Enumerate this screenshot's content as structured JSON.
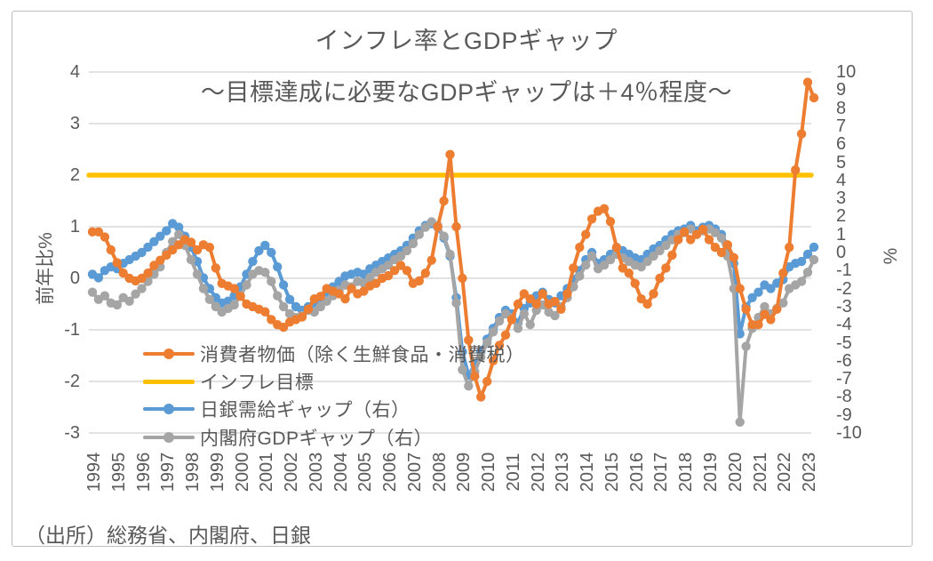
{
  "chart": {
    "title": "インフレ率とGDPギャップ",
    "subtitle": "～目標達成に必要なGDPギャップは＋4％程度～",
    "source_note": "（出所）総務省、内閣府、日銀",
    "border_color": "#bfbfbf",
    "grid_color": "#d9d9d9",
    "text_color": "#595959"
  },
  "chart_data": {
    "type": "line",
    "title": "インフレ率とGDPギャップ",
    "subtitle": "～目標達成に必要なGDPギャップは＋4％程度～",
    "x_unit": "quarter",
    "x_start": "1994Q1",
    "x_end": "2023Q2",
    "x_tick_labels": [
      "1994",
      "1995",
      "1996",
      "1997",
      "1998",
      "1999",
      "2000",
      "2001",
      "2002",
      "2003",
      "2004",
      "2005",
      "2006",
      "2007",
      "2008",
      "2009",
      "2010",
      "2011",
      "2012",
      "2013",
      "2014",
      "2015",
      "2016",
      "2017",
      "2018",
      "2019",
      "2020",
      "2021",
      "2022",
      "2023"
    ],
    "grid": true,
    "legend_position": "inside-bottom-left",
    "left_axis": {
      "label": "前年比%",
      "min": -3,
      "max": 4,
      "tick_step": 1,
      "ticks": [
        4,
        3,
        2,
        1,
        0,
        -1,
        -2,
        -3
      ]
    },
    "right_axis": {
      "label": "%",
      "min": -10,
      "max": 10,
      "tick_step": 1,
      "ticks": [
        10,
        9,
        8,
        7,
        6,
        5,
        4,
        3,
        2,
        1,
        0,
        -1,
        -2,
        -3,
        -4,
        -5,
        -6,
        -7,
        -8,
        -9,
        -10
      ]
    },
    "series": [
      {
        "name": "消費者物価（除く生鮮食品・消費税）",
        "axis": "left",
        "color": "#ED7D31",
        "marker": true,
        "values": [
          0.9,
          0.9,
          0.8,
          0.55,
          0.3,
          0.1,
          0.0,
          -0.05,
          0.0,
          0.1,
          0.25,
          0.35,
          0.45,
          0.55,
          0.65,
          0.75,
          0.7,
          0.55,
          0.65,
          0.6,
          0.2,
          -0.1,
          -0.15,
          -0.2,
          -0.35,
          -0.5,
          -0.55,
          -0.6,
          -0.65,
          -0.8,
          -0.9,
          -0.95,
          -0.85,
          -0.8,
          -0.75,
          -0.6,
          -0.4,
          -0.35,
          -0.2,
          -0.25,
          -0.3,
          -0.4,
          -0.2,
          -0.3,
          -0.25,
          -0.15,
          -0.1,
          0.0,
          0.05,
          0.15,
          0.25,
          0.15,
          -0.1,
          -0.05,
          0.1,
          0.35,
          1.0,
          1.5,
          2.4,
          1.0,
          0.0,
          -1.2,
          -1.9,
          -2.3,
          -2.0,
          -1.6,
          -1.3,
          -1.1,
          -0.8,
          -0.5,
          -0.3,
          -0.4,
          -0.5,
          -0.3,
          -0.5,
          -0.45,
          -0.6,
          -0.3,
          0.2,
          0.6,
          0.85,
          1.15,
          1.3,
          1.35,
          1.1,
          0.6,
          0.2,
          0.1,
          -0.1,
          -0.4,
          -0.5,
          -0.3,
          0.0,
          0.2,
          0.45,
          0.75,
          0.9,
          0.75,
          0.85,
          0.95,
          0.75,
          0.6,
          0.5,
          0.65,
          0.4,
          -0.2,
          -0.6,
          -0.9,
          -0.9,
          -0.7,
          -0.8,
          -0.6,
          0.1,
          0.6,
          2.1,
          2.8,
          3.8,
          3.5
        ]
      },
      {
        "name": "インフレ目標",
        "axis": "left",
        "color": "#FFC000",
        "marker": false,
        "constant_value": 2
      },
      {
        "name": "日銀需給ギャップ（右）",
        "axis": "right",
        "color": "#5B9BD5",
        "marker": true,
        "values": [
          -1.2,
          -1.4,
          -1.0,
          -0.8,
          -0.9,
          -0.6,
          -0.4,
          -0.2,
          0.0,
          0.3,
          0.6,
          0.9,
          1.2,
          1.6,
          1.4,
          0.9,
          0.3,
          -0.5,
          -1.4,
          -2.0,
          -2.5,
          -2.8,
          -2.7,
          -2.4,
          -1.9,
          -1.2,
          -0.5,
          0.1,
          0.4,
          0.0,
          -0.8,
          -1.8,
          -2.6,
          -3.0,
          -3.2,
          -3.0,
          -2.8,
          -2.5,
          -2.2,
          -1.9,
          -1.6,
          -1.3,
          -1.2,
          -1.1,
          -1.2,
          -0.9,
          -0.7,
          -0.5,
          -0.3,
          -0.1,
          0.1,
          0.4,
          0.8,
          1.2,
          1.5,
          1.6,
          1.4,
          0.8,
          -0.2,
          -2.5,
          -5.5,
          -6.8,
          -6.2,
          -5.5,
          -4.8,
          -4.2,
          -3.6,
          -3.2,
          -3.4,
          -3.9,
          -3.1,
          -2.8,
          -2.4,
          -2.2,
          -2.6,
          -2.8,
          -2.4,
          -2.0,
          -1.5,
          -1.0,
          -0.4,
          0.0,
          -0.6,
          -0.4,
          -0.1,
          0.2,
          0.1,
          -0.1,
          -0.3,
          -0.4,
          -0.1,
          0.2,
          0.4,
          0.7,
          1.0,
          1.2,
          1.3,
          1.5,
          1.2,
          1.4,
          1.5,
          1.3,
          1.0,
          0.4,
          -0.6,
          -4.5,
          -3.0,
          -2.5,
          -2.2,
          -1.8,
          -2.0,
          -1.7,
          -1.5,
          -0.8,
          -0.6,
          -0.5,
          -0.1,
          0.3
        ]
      },
      {
        "name": "内閣府GDPギャップ（右）",
        "axis": "right",
        "color": "#A5A5A5",
        "marker": true,
        "values": [
          -2.2,
          -2.6,
          -2.4,
          -2.8,
          -2.9,
          -2.5,
          -2.7,
          -2.3,
          -2.0,
          -1.6,
          -1.2,
          -0.8,
          0.0,
          0.6,
          1.0,
          0.4,
          -0.4,
          -1.2,
          -2.0,
          -2.6,
          -3.0,
          -3.3,
          -3.1,
          -2.9,
          -2.4,
          -1.8,
          -1.2,
          -1.0,
          -1.1,
          -1.6,
          -2.4,
          -3.0,
          -3.4,
          -3.6,
          -3.5,
          -3.2,
          -3.3,
          -3.0,
          -2.7,
          -2.4,
          -2.1,
          -1.8,
          -1.9,
          -1.6,
          -1.7,
          -1.4,
          -1.1,
          -0.9,
          -0.7,
          -0.4,
          -0.2,
          0.1,
          0.5,
          1.0,
          1.4,
          1.7,
          1.5,
          0.9,
          -0.1,
          -2.8,
          -6.5,
          -7.4,
          -6.6,
          -5.8,
          -5.0,
          -4.4,
          -3.8,
          -3.4,
          -3.6,
          -4.2,
          -3.4,
          -4.0,
          -3.2,
          -2.9,
          -3.3,
          -3.5,
          -3.0,
          -2.5,
          -1.9,
          -1.3,
          -0.7,
          -0.2,
          -0.9,
          -0.7,
          -0.4,
          -0.1,
          -0.3,
          -0.5,
          -0.7,
          -0.8,
          -0.5,
          -0.2,
          0.1,
          0.4,
          0.7,
          1.0,
          1.1,
          1.3,
          1.0,
          1.2,
          1.3,
          1.1,
          0.8,
          -0.2,
          -2.0,
          -9.4,
          -5.2,
          -4.2,
          -3.6,
          -3.0,
          -3.4,
          -3.1,
          -2.8,
          -2.0,
          -1.8,
          -1.6,
          -1.1,
          -0.4
        ]
      }
    ]
  }
}
